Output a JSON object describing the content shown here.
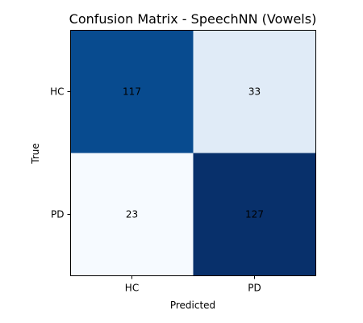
{
  "chart_data": {
    "type": "heatmap",
    "title": "Confusion Matrix - SpeechNN (Vowels)",
    "xlabel": "Predicted",
    "ylabel": "True",
    "x_categories": [
      "HC",
      "PD"
    ],
    "y_categories": [
      "HC",
      "PD"
    ],
    "values": [
      [
        117,
        33
      ],
      [
        23,
        127
      ]
    ],
    "colormap": "Blues",
    "cell_colors": [
      [
        "#084b8f",
        "#e0ebf7"
      ],
      [
        "#f6faff",
        "#08306b"
      ]
    ],
    "label_color": "#000000",
    "grid": false
  }
}
